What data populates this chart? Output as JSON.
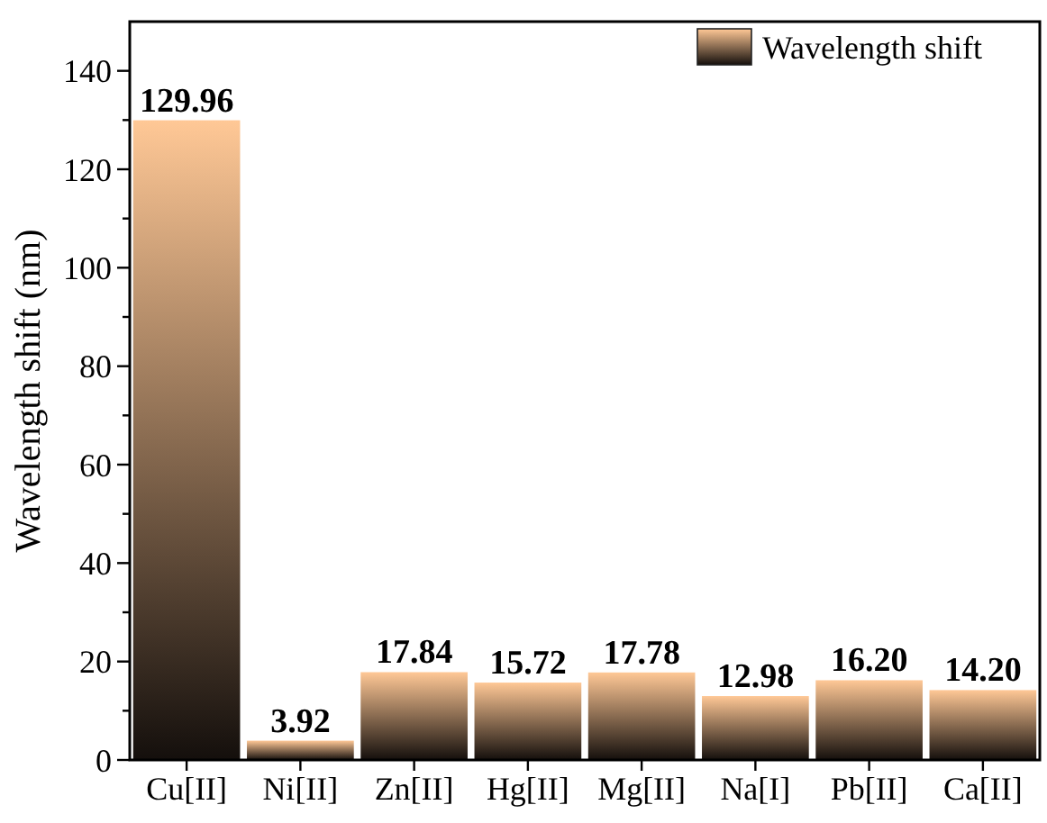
{
  "chart_data": {
    "type": "bar",
    "ylabel": "Wavelength shift (nm)",
    "categories": [
      "Cu[II]",
      "Ni[II]",
      "Zn[II]",
      "Hg[II]",
      "Mg[II]",
      "Na[I]",
      "Pb[II]",
      "Ca[II]"
    ],
    "series": [
      {
        "name": "Wavelength shift",
        "color": "#ffc896",
        "values": [
          129.96,
          3.92,
          17.84,
          15.72,
          17.78,
          12.98,
          16.2,
          14.2
        ],
        "value_labels": [
          "129.96",
          "3.92",
          "17.84",
          "15.72",
          "17.78",
          "12.98",
          "16.20",
          "14.20"
        ]
      }
    ],
    "ylim": [
      0,
      150
    ],
    "yticks": [
      0,
      {
        "value": 10,
        "label": null
      },
      20,
      {
        "value": 30,
        "label": null
      },
      40,
      {
        "value": 50,
        "label": null
      },
      60,
      {
        "value": 70,
        "label": null
      },
      80,
      {
        "value": 90,
        "label": null
      },
      100,
      {
        "value": 110,
        "label": null
      },
      120,
      {
        "value": 130,
        "label": null
      },
      140
    ],
    "grid": false,
    "legend": "top right"
  }
}
